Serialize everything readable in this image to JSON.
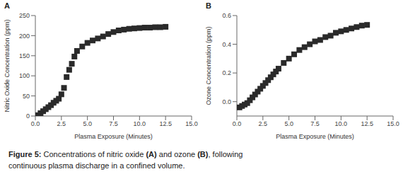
{
  "chart_data": [
    {
      "type": "scatter",
      "title": "A",
      "x": [
        0.25,
        0.5,
        0.75,
        1.0,
        1.25,
        1.5,
        1.75,
        2.0,
        2.25,
        2.5,
        2.75,
        3.0,
        3.25,
        3.5,
        3.75,
        4.0,
        4.5,
        5.0,
        5.5,
        6.0,
        6.5,
        7.0,
        7.5,
        8.0,
        8.5,
        9.0,
        9.5,
        10.0,
        10.5,
        11.0,
        11.5,
        12.0,
        12.5
      ],
      "values": [
        2,
        7,
        12,
        17,
        22,
        27,
        33,
        38,
        43,
        54,
        70,
        97,
        115,
        130,
        148,
        162,
        173,
        182,
        188,
        193,
        198,
        204,
        209,
        213,
        215,
        217,
        218,
        219,
        220,
        220,
        221,
        221,
        222
      ],
      "xlabel": "Plasma Exposure (Minutes)",
      "ylabel": "Nitric Oxide Concentration (ppm)",
      "xlim": [
        0.0,
        15.0
      ],
      "ylim": [
        0,
        250
      ],
      "xticks": [
        {
          "value": 0.0,
          "label": "0.0"
        },
        2.5,
        {
          "value": 5.0,
          "label": "5.0"
        },
        7.5,
        {
          "value": 10.0,
          "label": "10.0"
        },
        12.5,
        {
          "value": 15.0,
          "label": "15.0"
        }
      ],
      "yticks": [
        0,
        50,
        100,
        150,
        200,
        250
      ],
      "color": "#2a2a2a",
      "marker": "square",
      "grid": false
    },
    {
      "type": "scatter",
      "title": "B",
      "x": [
        0.25,
        0.5,
        0.75,
        1.0,
        1.25,
        1.5,
        1.75,
        2.0,
        2.25,
        2.5,
        2.75,
        3.0,
        3.25,
        3.5,
        3.75,
        4.0,
        4.5,
        5.0,
        5.5,
        6.0,
        6.5,
        7.0,
        7.5,
        8.0,
        8.5,
        9.0,
        9.5,
        10.0,
        10.5,
        11.0,
        11.5,
        12.0,
        12.5
      ],
      "values": [
        -0.04,
        -0.03,
        -0.02,
        -0.01,
        0.01,
        0.03,
        0.05,
        0.07,
        0.09,
        0.11,
        0.13,
        0.15,
        0.17,
        0.19,
        0.21,
        0.23,
        0.27,
        0.3,
        0.33,
        0.36,
        0.38,
        0.4,
        0.42,
        0.43,
        0.45,
        0.46,
        0.48,
        0.49,
        0.5,
        0.51,
        0.52,
        0.53,
        0.535
      ],
      "xlabel": "Plasma Exposure (Minutes)",
      "ylabel": "Ozone Concentration (ppm)",
      "xlim": [
        0.0,
        15.0
      ],
      "ylim": [
        -0.1,
        0.6
      ],
      "xticks": [
        {
          "value": 0.0,
          "label": "0.0"
        },
        2.5,
        {
          "value": 5.0,
          "label": "5.0"
        },
        7.5,
        {
          "value": 10.0,
          "label": "10.0"
        },
        12.5,
        {
          "value": 15.0,
          "label": "15.0"
        }
      ],
      "yticks": [
        {
          "value": 0.0,
          "label": "0.0"
        },
        {
          "value": 0.2,
          "label": "0.2"
        },
        {
          "value": 0.4,
          "label": "0.4"
        },
        {
          "value": 0.6,
          "label": "0.6"
        }
      ],
      "color": "#2a2a2a",
      "marker": "square",
      "grid": false
    }
  ],
  "caption": [
    [
      {
        "text": "Figure 5:",
        "bold": true
      },
      {
        "text": " Concentrations of nitric oxide ",
        "bold": false
      },
      {
        "text": "(A)",
        "bold": true
      },
      {
        "text": " and ozone ",
        "bold": false
      },
      {
        "text": "(B)",
        "bold": true
      },
      {
        "text": ", following",
        "bold": false
      }
    ],
    [
      {
        "text": "continuous plasma discharge in a confined volume.",
        "bold": false
      }
    ]
  ]
}
